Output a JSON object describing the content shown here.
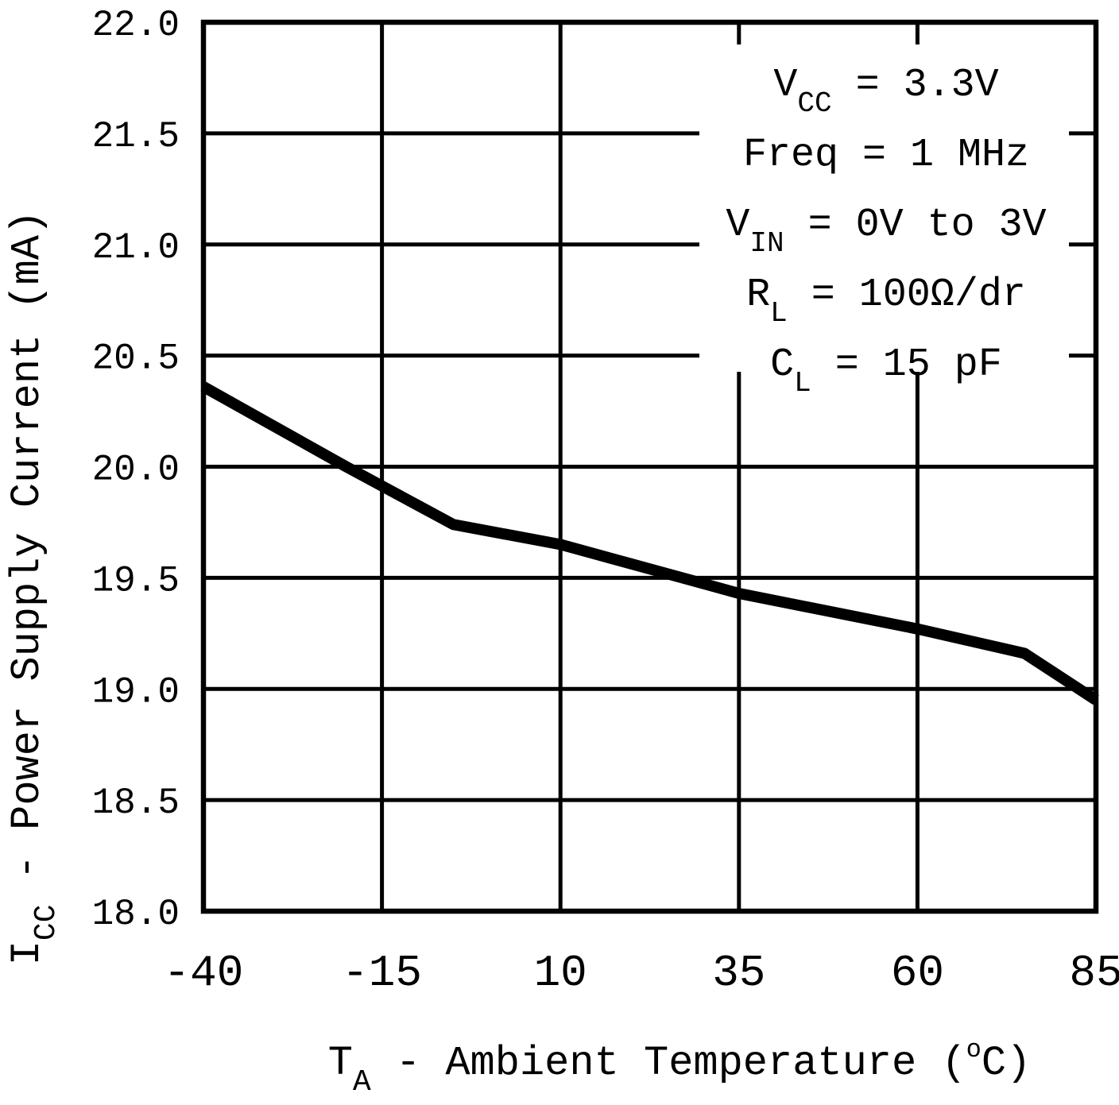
{
  "figure": {
    "background": "#ffffff",
    "ink_color": "#000000"
  },
  "chart_data": {
    "type": "line",
    "title": "",
    "xlabel": {
      "pre": "T",
      "sub": "A",
      "mid": " - Ambient Temperature (",
      "sup": "o",
      "end": "C)"
    },
    "ylabel": {
      "pre": "I",
      "sub": "CC",
      "rest": " - Power Supply Current (mA)"
    },
    "xlim": [
      -40,
      85
    ],
    "ylim": [
      18.0,
      22.0
    ],
    "xtick_labels": [
      "-40",
      "-15",
      "10",
      "35",
      "60",
      "85"
    ],
    "ytick_labels": [
      "22.0",
      "21.5",
      "21.0",
      "20.5",
      "20.0",
      "19.5",
      "19.0",
      "18.5",
      "18.0"
    ],
    "grid": true,
    "legend_position": "none",
    "conditions": [
      {
        "pre": "V",
        "sub": "CC",
        "post": " = 3.3V"
      },
      {
        "pre": "Freq = 1 MHz",
        "sub": "",
        "post": ""
      },
      {
        "pre": "V",
        "sub": "IN",
        "post": " = 0V to 3V"
      },
      {
        "pre": "R",
        "sub": "L",
        "post": " = 100Ω/dr"
      },
      {
        "pre": "C",
        "sub": "L",
        "post": " = 15 pF"
      }
    ],
    "series": [
      {
        "points": [
          [
            -40,
            20.36
          ],
          [
            -20,
            20.0
          ],
          [
            -5,
            19.74
          ],
          [
            10,
            19.65
          ],
          [
            35,
            19.43
          ],
          [
            60,
            19.27
          ],
          [
            75,
            19.16
          ],
          [
            85,
            18.95
          ]
        ]
      }
    ],
    "colors": {
      "line": "#000000",
      "grid": "#000000",
      "text": "#000000",
      "background": "#ffffff"
    }
  }
}
